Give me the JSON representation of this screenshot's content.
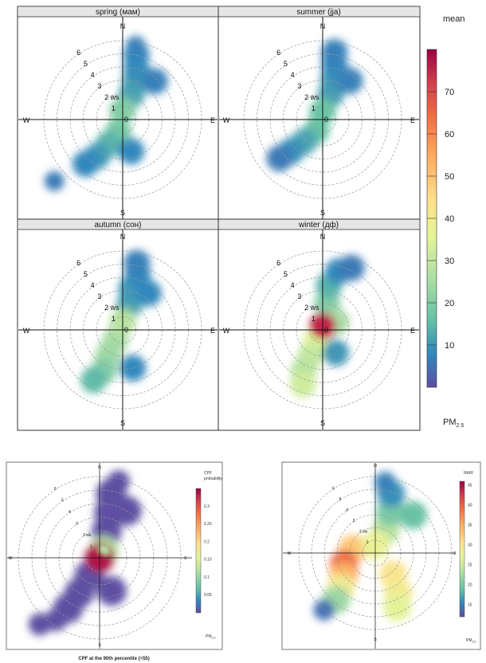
{
  "chart_data": [
    {
      "type": "heatmap",
      "subtype": "polar",
      "panels": [
        {
          "title": "spring (мам)",
          "blobs": [
            {
              "r": 2.0,
              "deg": 20,
              "v": 12
            },
            {
              "r": 3.0,
              "deg": 18,
              "v": 11
            },
            {
              "r": 4.0,
              "deg": 15,
              "v": 9
            },
            {
              "r": 5.0,
              "deg": 12,
              "v": 8
            },
            {
              "r": 5.7,
              "deg": 10,
              "v": 7
            },
            {
              "r": 3.8,
              "deg": 40,
              "v": 7
            },
            {
              "r": 1.0,
              "deg": 200,
              "v": 18
            },
            {
              "r": 2.2,
              "deg": 210,
              "v": 14
            },
            {
              "r": 3.4,
              "deg": 215,
              "v": 10
            },
            {
              "r": 4.4,
              "deg": 220,
              "v": 8
            },
            {
              "r": 2.5,
              "deg": 165,
              "v": 8
            },
            {
              "r": 7.0,
              "deg": 228,
              "v": 6
            },
            {
              "r": 0.7,
              "deg": 0,
              "v": 20
            }
          ]
        },
        {
          "title": "summer (jja)",
          "blobs": [
            {
              "r": 2.0,
              "deg": 18,
              "v": 11
            },
            {
              "r": 3.2,
              "deg": 15,
              "v": 10
            },
            {
              "r": 4.3,
              "deg": 12,
              "v": 8
            },
            {
              "r": 5.2,
              "deg": 10,
              "v": 7
            },
            {
              "r": 3.6,
              "deg": 35,
              "v": 7
            },
            {
              "r": 1.0,
              "deg": 210,
              "v": 16
            },
            {
              "r": 2.2,
              "deg": 220,
              "v": 12
            },
            {
              "r": 3.4,
              "deg": 225,
              "v": 9
            },
            {
              "r": 4.4,
              "deg": 228,
              "v": 6
            },
            {
              "r": 0.6,
              "deg": 0,
              "v": 17
            }
          ]
        },
        {
          "title": "autumn (сон)",
          "blobs": [
            {
              "r": 2.0,
              "deg": 15,
              "v": 12
            },
            {
              "r": 3.2,
              "deg": 12,
              "v": 10
            },
            {
              "r": 4.4,
              "deg": 15,
              "v": 8
            },
            {
              "r": 5.2,
              "deg": 12,
              "v": 7
            },
            {
              "r": 3.4,
              "deg": 35,
              "v": 8
            },
            {
              "r": 1.0,
              "deg": 215,
              "v": 25
            },
            {
              "r": 2.2,
              "deg": 210,
              "v": 24
            },
            {
              "r": 3.4,
              "deg": 205,
              "v": 20
            },
            {
              "r": 4.4,
              "deg": 210,
              "v": 15
            },
            {
              "r": 3.0,
              "deg": 165,
              "v": 8
            },
            {
              "r": 0.6,
              "deg": 0,
              "v": 28
            }
          ]
        },
        {
          "title": "winter (дф)",
          "blobs": [
            {
              "r": 2.0,
              "deg": 10,
              "v": 20
            },
            {
              "r": 3.4,
              "deg": 8,
              "v": 14
            },
            {
              "r": 4.6,
              "deg": 15,
              "v": 8
            },
            {
              "r": 5.2,
              "deg": 25,
              "v": 6
            },
            {
              "r": 1.0,
              "deg": 210,
              "v": 35
            },
            {
              "r": 2.2,
              "deg": 205,
              "v": 30
            },
            {
              "r": 3.4,
              "deg": 205,
              "v": 28
            },
            {
              "r": 4.4,
              "deg": 200,
              "v": 32
            },
            {
              "r": 2.0,
              "deg": 150,
              "v": 10
            },
            {
              "r": 1.2,
              "deg": 60,
              "v": 25
            },
            {
              "r": 0.3,
              "deg": 0,
              "v": 75
            }
          ]
        }
      ],
      "ring_labels": [
        "1",
        "2 ws",
        "3",
        "4",
        "5",
        "6"
      ],
      "center_label": "0",
      "directions": {
        "n": "N",
        "e": "E",
        "s": "S",
        "w": "W"
      },
      "colorbar": {
        "title": "mean",
        "label": "PM",
        "label_sub": "2.5",
        "min": 0,
        "max": 80,
        "ticks": [
          "10",
          "20",
          "30",
          "40",
          "50",
          "60",
          "70"
        ]
      }
    },
    {
      "type": "heatmap",
      "subtype": "polar",
      "title": "CPF at the 90th percentile (=55)",
      "ring_labels": [
        "1",
        "2 ws",
        "3",
        "4",
        "5",
        "6"
      ],
      "directions": {
        "n": "N",
        "e": "E",
        "s": "S",
        "w": "W"
      },
      "blobs": [
        {
          "r": 2.0,
          "deg": 15,
          "v": 0.0
        },
        {
          "r": 3.4,
          "deg": 12,
          "v": 0.0
        },
        {
          "r": 4.8,
          "deg": 10,
          "v": 0.0
        },
        {
          "r": 5.8,
          "deg": 14,
          "v": 0.0
        },
        {
          "r": 4.0,
          "deg": 30,
          "v": 0.0
        },
        {
          "r": 1.5,
          "deg": 210,
          "v": 0.0
        },
        {
          "r": 3.0,
          "deg": 210,
          "v": 0.0
        },
        {
          "r": 4.4,
          "deg": 212,
          "v": 0.0
        },
        {
          "r": 5.6,
          "deg": 215,
          "v": 0.0
        },
        {
          "r": 6.6,
          "deg": 222,
          "v": 0.0
        },
        {
          "r": 2.6,
          "deg": 160,
          "v": 0.0
        },
        {
          "r": 0.6,
          "deg": 30,
          "v": 0.12
        },
        {
          "r": 0.0,
          "deg": 0,
          "v": 0.34
        }
      ],
      "colorbar": {
        "title1": "CPF",
        "title2": "probability",
        "label": "PM",
        "label_sub": "2.5",
        "min": 0,
        "max": 0.35,
        "ticks": [
          "0.05",
          "0.1",
          "0.15",
          "0.2",
          "0.25",
          "0.3"
        ]
      }
    },
    {
      "type": "heatmap",
      "subtype": "polar",
      "ring_labels": [
        "1",
        "2 ws",
        "3",
        "4",
        "5",
        "6"
      ],
      "directions": {
        "n": "N",
        "e": "E",
        "s": "S",
        "w": "W"
      },
      "blobs": [
        {
          "r": 2.0,
          "deg": 25,
          "v": 24
        },
        {
          "r": 3.4,
          "deg": 20,
          "v": 20
        },
        {
          "r": 4.8,
          "deg": 15,
          "v": 16
        },
        {
          "r": 5.6,
          "deg": 8,
          "v": 15
        },
        {
          "r": 4.2,
          "deg": 45,
          "v": 19
        },
        {
          "r": 2.2,
          "deg": 140,
          "v": 30
        },
        {
          "r": 3.6,
          "deg": 150,
          "v": 29
        },
        {
          "r": 4.6,
          "deg": 158,
          "v": 27
        },
        {
          "r": 1.8,
          "deg": 280,
          "v": 33
        },
        {
          "r": 2.6,
          "deg": 250,
          "v": 40
        },
        {
          "r": 3.0,
          "deg": 235,
          "v": 35
        },
        {
          "r": 3.8,
          "deg": 225,
          "v": 29
        },
        {
          "r": 4.8,
          "deg": 220,
          "v": 22
        },
        {
          "r": 6.0,
          "deg": 222,
          "v": 14
        },
        {
          "r": 0.6,
          "deg": 0,
          "v": 28
        }
      ],
      "colorbar": {
        "title": "NWR",
        "label": "PM",
        "label_sub": "2.5",
        "min": 12,
        "max": 46,
        "ticks": [
          "15",
          "20",
          "25",
          "30",
          "35",
          "40",
          "45"
        ]
      }
    }
  ]
}
